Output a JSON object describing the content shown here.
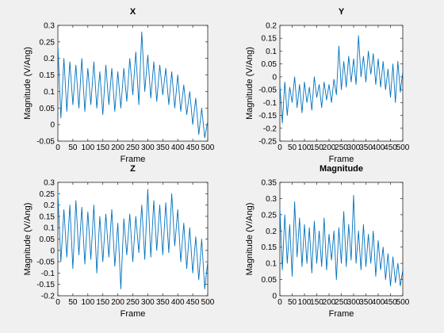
{
  "figure": {
    "background": "#f0f0f0",
    "line_color": "#0072bd"
  },
  "chart_data": [
    {
      "type": "line",
      "title": "X",
      "xlabel": "Frame",
      "ylabel": "Magnitude (V/Ang)",
      "xlim": [
        0,
        500
      ],
      "ylim": [
        -0.05,
        0.3
      ],
      "xticks": [
        0,
        50,
        100,
        150,
        200,
        250,
        300,
        350,
        400,
        450,
        500
      ],
      "yticks": [
        -0.05,
        0,
        0.05,
        0.1,
        0.15,
        0.2,
        0.25,
        0.3
      ],
      "xtick_labels": [
        "0",
        "50",
        "100",
        "150",
        "200",
        "250",
        "300",
        "350",
        "400",
        "450",
        "500"
      ],
      "ytick_labels": [
        "-0.05",
        "0",
        "0.05",
        "0.1",
        "0.15",
        "0.2",
        "0.25",
        "0.3"
      ],
      "grid": false,
      "series": [
        {
          "x": [
            0,
            10,
            20,
            30,
            40,
            50,
            60,
            70,
            80,
            90,
            100,
            110,
            120,
            130,
            140,
            150,
            160,
            170,
            180,
            190,
            200,
            210,
            220,
            230,
            240,
            250,
            260,
            270,
            280,
            290,
            300,
            310,
            320,
            330,
            340,
            350,
            360,
            370,
            380,
            390,
            400,
            410,
            420,
            430,
            440,
            450,
            460,
            470,
            480,
            490,
            500
          ],
          "values": [
            0.24,
            0.02,
            0.2,
            0.04,
            0.19,
            0.06,
            0.18,
            0.05,
            0.2,
            0.04,
            0.17,
            0.06,
            0.19,
            0.05,
            0.16,
            0.03,
            0.18,
            0.06,
            0.17,
            0.04,
            0.16,
            0.05,
            0.17,
            0.07,
            0.2,
            0.09,
            0.22,
            0.06,
            0.28,
            0.1,
            0.21,
            0.08,
            0.19,
            0.07,
            0.18,
            0.09,
            0.17,
            0.06,
            0.16,
            0.05,
            0.15,
            0.04,
            0.12,
            0.03,
            0.1,
            0.0,
            0.08,
            -0.03,
            0.05,
            -0.04,
            0.01
          ]
        }
      ]
    },
    {
      "type": "line",
      "title": "Y",
      "xlabel": "Frame",
      "ylabel": "Magnitude (V/Ang)",
      "xlim": [
        0,
        500
      ],
      "ylim": [
        -0.25,
        0.2
      ],
      "xticks": [
        0,
        50,
        100,
        150,
        200,
        250,
        300,
        350,
        400,
        450,
        500
      ],
      "yticks": [
        -0.25,
        -0.2,
        -0.15,
        -0.1,
        -0.05,
        0,
        0.05,
        0.1,
        0.15,
        0.2
      ],
      "xtick_labels": [
        "0",
        "50",
        "100",
        "150",
        "200",
        "250",
        "300",
        "350",
        "400",
        "450",
        "500"
      ],
      "ytick_labels": [
        "-0.25",
        "-0.2",
        "-0.15",
        "-0.1",
        "-0.05",
        "0",
        "0.05",
        "0.1",
        "0.15",
        "0.2"
      ],
      "grid": false,
      "series": [
        {
          "x": [
            0,
            10,
            20,
            30,
            40,
            50,
            60,
            70,
            80,
            90,
            100,
            110,
            120,
            130,
            140,
            150,
            160,
            170,
            180,
            190,
            200,
            210,
            220,
            230,
            240,
            250,
            260,
            270,
            280,
            290,
            300,
            310,
            320,
            330,
            340,
            350,
            360,
            370,
            380,
            390,
            400,
            410,
            420,
            430,
            440,
            450,
            460,
            470,
            480,
            490,
            500
          ],
          "values": [
            -0.03,
            -0.18,
            -0.02,
            -0.15,
            -0.04,
            -0.1,
            0.0,
            -0.12,
            -0.03,
            -0.14,
            -0.02,
            -0.1,
            -0.04,
            -0.13,
            0.0,
            -0.08,
            -0.03,
            -0.12,
            -0.02,
            -0.09,
            -0.03,
            -0.1,
            -0.01,
            -0.07,
            0.12,
            -0.05,
            0.06,
            -0.04,
            0.08,
            -0.02,
            0.07,
            -0.03,
            0.16,
            0.0,
            0.08,
            -0.02,
            0.1,
            0.01,
            0.09,
            -0.03,
            0.07,
            -0.04,
            0.06,
            -0.05,
            0.03,
            -0.08,
            0.05,
            -0.1,
            0.06,
            -0.06,
            0.02
          ]
        }
      ]
    },
    {
      "type": "line",
      "title": "Z",
      "xlabel": "Frame",
      "ylabel": "Magnitude (V/Ang)",
      "xlim": [
        0,
        500
      ],
      "ylim": [
        -0.2,
        0.3
      ],
      "xticks": [
        0,
        50,
        100,
        150,
        200,
        250,
        300,
        350,
        400,
        450,
        500
      ],
      "yticks": [
        -0.2,
        -0.15,
        -0.1,
        -0.05,
        0,
        0.05,
        0.1,
        0.15,
        0.2,
        0.25,
        0.3
      ],
      "xtick_labels": [
        "0",
        "50",
        "100",
        "150",
        "200",
        "250",
        "300",
        "350",
        "400",
        "450",
        "500"
      ],
      "ytick_labels": [
        "-0.2",
        "-0.15",
        "-0.1",
        "-0.05",
        "0",
        "0.05",
        "0.1",
        "0.15",
        "0.2",
        "0.25",
        "0.3"
      ],
      "grid": false,
      "series": [
        {
          "x": [
            0,
            10,
            20,
            30,
            40,
            50,
            60,
            70,
            80,
            90,
            100,
            110,
            120,
            130,
            140,
            150,
            160,
            170,
            180,
            190,
            200,
            210,
            220,
            230,
            240,
            250,
            260,
            270,
            280,
            290,
            300,
            310,
            320,
            330,
            340,
            350,
            360,
            370,
            380,
            390,
            400,
            410,
            420,
            430,
            440,
            450,
            460,
            470,
            480,
            490,
            500
          ],
          "values": [
            0.25,
            -0.05,
            0.18,
            -0.03,
            0.2,
            -0.08,
            0.22,
            -0.02,
            0.19,
            -0.06,
            0.17,
            -0.04,
            0.2,
            -0.1,
            0.15,
            -0.05,
            0.16,
            -0.03,
            0.18,
            -0.07,
            0.12,
            -0.17,
            0.14,
            -0.02,
            0.16,
            -0.05,
            0.15,
            -0.01,
            0.2,
            -0.04,
            0.27,
            -0.03,
            0.22,
            0.0,
            0.2,
            -0.02,
            0.21,
            -0.01,
            0.25,
            0.02,
            0.18,
            -0.05,
            0.12,
            -0.08,
            0.1,
            -0.1,
            0.06,
            -0.13,
            0.05,
            -0.17,
            -0.05
          ]
        }
      ]
    },
    {
      "type": "line",
      "title": "Magnitude",
      "xlabel": "Frame",
      "ylabel": "Magnitude (V/Ang)",
      "xlim": [
        0,
        500
      ],
      "ylim": [
        0,
        0.35
      ],
      "xticks": [
        0,
        50,
        100,
        150,
        200,
        250,
        300,
        350,
        400,
        450,
        500
      ],
      "yticks": [
        0,
        0.05,
        0.1,
        0.15,
        0.2,
        0.25,
        0.3,
        0.35
      ],
      "xtick_labels": [
        "0",
        "50",
        "100",
        "150",
        "200",
        "250",
        "300",
        "350",
        "400",
        "450",
        "500"
      ],
      "ytick_labels": [
        "0",
        "0.05",
        "0.1",
        "0.15",
        "0.2",
        "0.25",
        "0.3",
        "0.35"
      ],
      "grid": false,
      "series": [
        {
          "x": [
            0,
            10,
            20,
            30,
            40,
            50,
            60,
            70,
            80,
            90,
            100,
            110,
            120,
            130,
            140,
            150,
            160,
            170,
            180,
            190,
            200,
            210,
            220,
            230,
            240,
            250,
            260,
            270,
            280,
            290,
            300,
            310,
            320,
            330,
            340,
            350,
            360,
            370,
            380,
            390,
            400,
            410,
            420,
            430,
            440,
            450,
            460,
            470,
            480,
            490,
            500
          ],
          "values": [
            0.27,
            0.08,
            0.25,
            0.1,
            0.22,
            0.06,
            0.29,
            0.12,
            0.24,
            0.09,
            0.22,
            0.1,
            0.21,
            0.07,
            0.23,
            0.1,
            0.2,
            0.09,
            0.24,
            0.08,
            0.19,
            0.11,
            0.2,
            0.05,
            0.21,
            0.1,
            0.26,
            0.09,
            0.22,
            0.11,
            0.31,
            0.1,
            0.2,
            0.08,
            0.22,
            0.09,
            0.19,
            0.1,
            0.2,
            0.06,
            0.17,
            0.08,
            0.15,
            0.05,
            0.13,
            0.03,
            0.12,
            0.04,
            0.1,
            0.03,
            0.08
          ]
        }
      ]
    }
  ]
}
